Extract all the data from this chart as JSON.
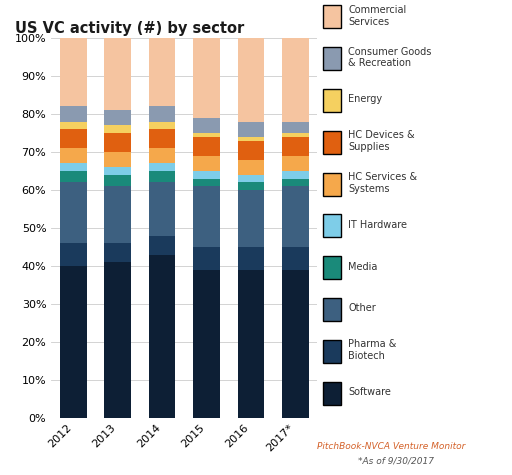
{
  "title": "US VC activity (#) by sector",
  "years": [
    "2012",
    "2013",
    "2014",
    "2015",
    "2016",
    "2017*"
  ],
  "segments": [
    {
      "label": "Software",
      "color": "#0d1f35",
      "values": [
        40,
        41,
        43,
        39,
        39,
        39
      ]
    },
    {
      "label": "Pharma &\nBiotech",
      "color": "#1a3a5c",
      "values": [
        6,
        5,
        5,
        6,
        6,
        6
      ]
    },
    {
      "label": "Other",
      "color": "#3d6080",
      "values": [
        16,
        15,
        14,
        16,
        15,
        16
      ]
    },
    {
      "label": "Media",
      "color": "#1a8a7a",
      "values": [
        3,
        3,
        3,
        2,
        2,
        2
      ]
    },
    {
      "label": "IT Hardware",
      "color": "#7ecde8",
      "values": [
        2,
        2,
        2,
        2,
        2,
        2
      ]
    },
    {
      "label": "HC Services &\nSystems",
      "color": "#f5a84b",
      "values": [
        4,
        4,
        4,
        4,
        4,
        4
      ]
    },
    {
      "label": "HC Devices &\nSupplies",
      "color": "#e06010",
      "values": [
        5,
        5,
        5,
        5,
        5,
        5
      ]
    },
    {
      "label": "Energy",
      "color": "#f5d060",
      "values": [
        2,
        2,
        2,
        1,
        1,
        1
      ]
    },
    {
      "label": "Consumer Goods\n& Recreation",
      "color": "#8a9ab0",
      "values": [
        4,
        4,
        4,
        4,
        4,
        3
      ]
    },
    {
      "label": "Commercial\nServices",
      "color": "#f5c4a0",
      "values": [
        18,
        19,
        18,
        21,
        22,
        22
      ]
    }
  ],
  "footer_line1": "PitchBook-NVCA Venture Monitor",
  "footer_line2": "*As of 9/30/2017",
  "footer_color": "#d4622a",
  "background_color": "#ffffff",
  "grid_color": "#cccccc",
  "yticks": [
    0,
    10,
    20,
    30,
    40,
    50,
    60,
    70,
    80,
    90,
    100
  ],
  "ytick_labels": [
    "0%",
    "10%",
    "20%",
    "30%",
    "40%",
    "50%",
    "60%",
    "70%",
    "80%",
    "90%",
    "100%"
  ]
}
